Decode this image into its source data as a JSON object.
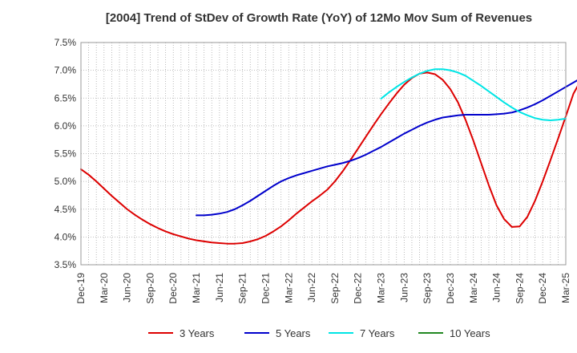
{
  "chart_data": {
    "type": "line",
    "title": "[2004]  Trend of StDev of Growth Rate (YoY) of 12Mo Mov Sum of Revenues",
    "xlabel": "",
    "ylabel": "",
    "ylim": [
      3.5,
      7.5
    ],
    "y_ticks": [
      3.5,
      4.0,
      4.5,
      5.0,
      5.5,
      6.0,
      6.5,
      7.0,
      7.5
    ],
    "y_tick_labels": [
      "3.5%",
      "4.0%",
      "4.5%",
      "5.0%",
      "5.5%",
      "6.0%",
      "6.5%",
      "7.0%",
      "7.5%"
    ],
    "x_tick_labels": [
      "Dec-19",
      "Mar-20",
      "Jun-20",
      "Sep-20",
      "Dec-20",
      "Mar-21",
      "Jun-21",
      "Sep-21",
      "Dec-21",
      "Mar-22",
      "Jun-22",
      "Sep-22",
      "Dec-22",
      "Mar-23",
      "Jun-23",
      "Sep-23",
      "Dec-23",
      "Mar-24",
      "Jun-24",
      "Sep-24",
      "Dec-24",
      "Mar-25"
    ],
    "x_months_total": 63,
    "grid": true,
    "legend_position": "bottom",
    "series": [
      {
        "name": "3 Years",
        "color": "#dd0000",
        "x_start": 0,
        "values": [
          5.22,
          5.12,
          5.0,
          4.87,
          4.74,
          4.62,
          4.5,
          4.4,
          4.31,
          4.23,
          4.16,
          4.1,
          4.05,
          4.01,
          3.97,
          3.94,
          3.92,
          3.9,
          3.89,
          3.88,
          3.88,
          3.89,
          3.92,
          3.96,
          4.02,
          4.1,
          4.19,
          4.3,
          4.42,
          4.53,
          4.64,
          4.74,
          4.85,
          5.0,
          5.18,
          5.38,
          5.59,
          5.8,
          6.01,
          6.21,
          6.4,
          6.58,
          6.74,
          6.86,
          6.94,
          6.96,
          6.93,
          6.83,
          6.66,
          6.42,
          6.1,
          5.73,
          5.33,
          4.93,
          4.57,
          4.32,
          4.18,
          4.19,
          4.36,
          4.65,
          5.0,
          5.38,
          5.77,
          6.17,
          6.58,
          6.83
        ]
      },
      {
        "name": "5 Years",
        "color": "#0000cc",
        "x_start": 15,
        "values": [
          4.39,
          4.39,
          4.4,
          4.42,
          4.45,
          4.5,
          4.57,
          4.65,
          4.74,
          4.83,
          4.92,
          5.0,
          5.06,
          5.11,
          5.15,
          5.19,
          5.23,
          5.27,
          5.3,
          5.33,
          5.37,
          5.42,
          5.48,
          5.55,
          5.62,
          5.7,
          5.78,
          5.86,
          5.93,
          6.0,
          6.06,
          6.11,
          6.15,
          6.17,
          6.19,
          6.2,
          6.2,
          6.2,
          6.2,
          6.21,
          6.22,
          6.24,
          6.28,
          6.33,
          6.39,
          6.46,
          6.54,
          6.62,
          6.7,
          6.78,
          6.86,
          6.9
        ]
      },
      {
        "name": "7 Years",
        "color": "#00e5e5",
        "x_start": 39,
        "values": [
          6.49,
          6.6,
          6.7,
          6.79,
          6.87,
          6.94,
          6.99,
          7.02,
          7.02,
          7.0,
          6.96,
          6.9,
          6.81,
          6.72,
          6.62,
          6.52,
          6.42,
          6.33,
          6.25,
          6.19,
          6.14,
          6.11,
          6.1,
          6.11,
          6.13
        ]
      },
      {
        "name": "10 Years",
        "color": "#228822",
        "x_start": 0,
        "values": []
      }
    ]
  }
}
